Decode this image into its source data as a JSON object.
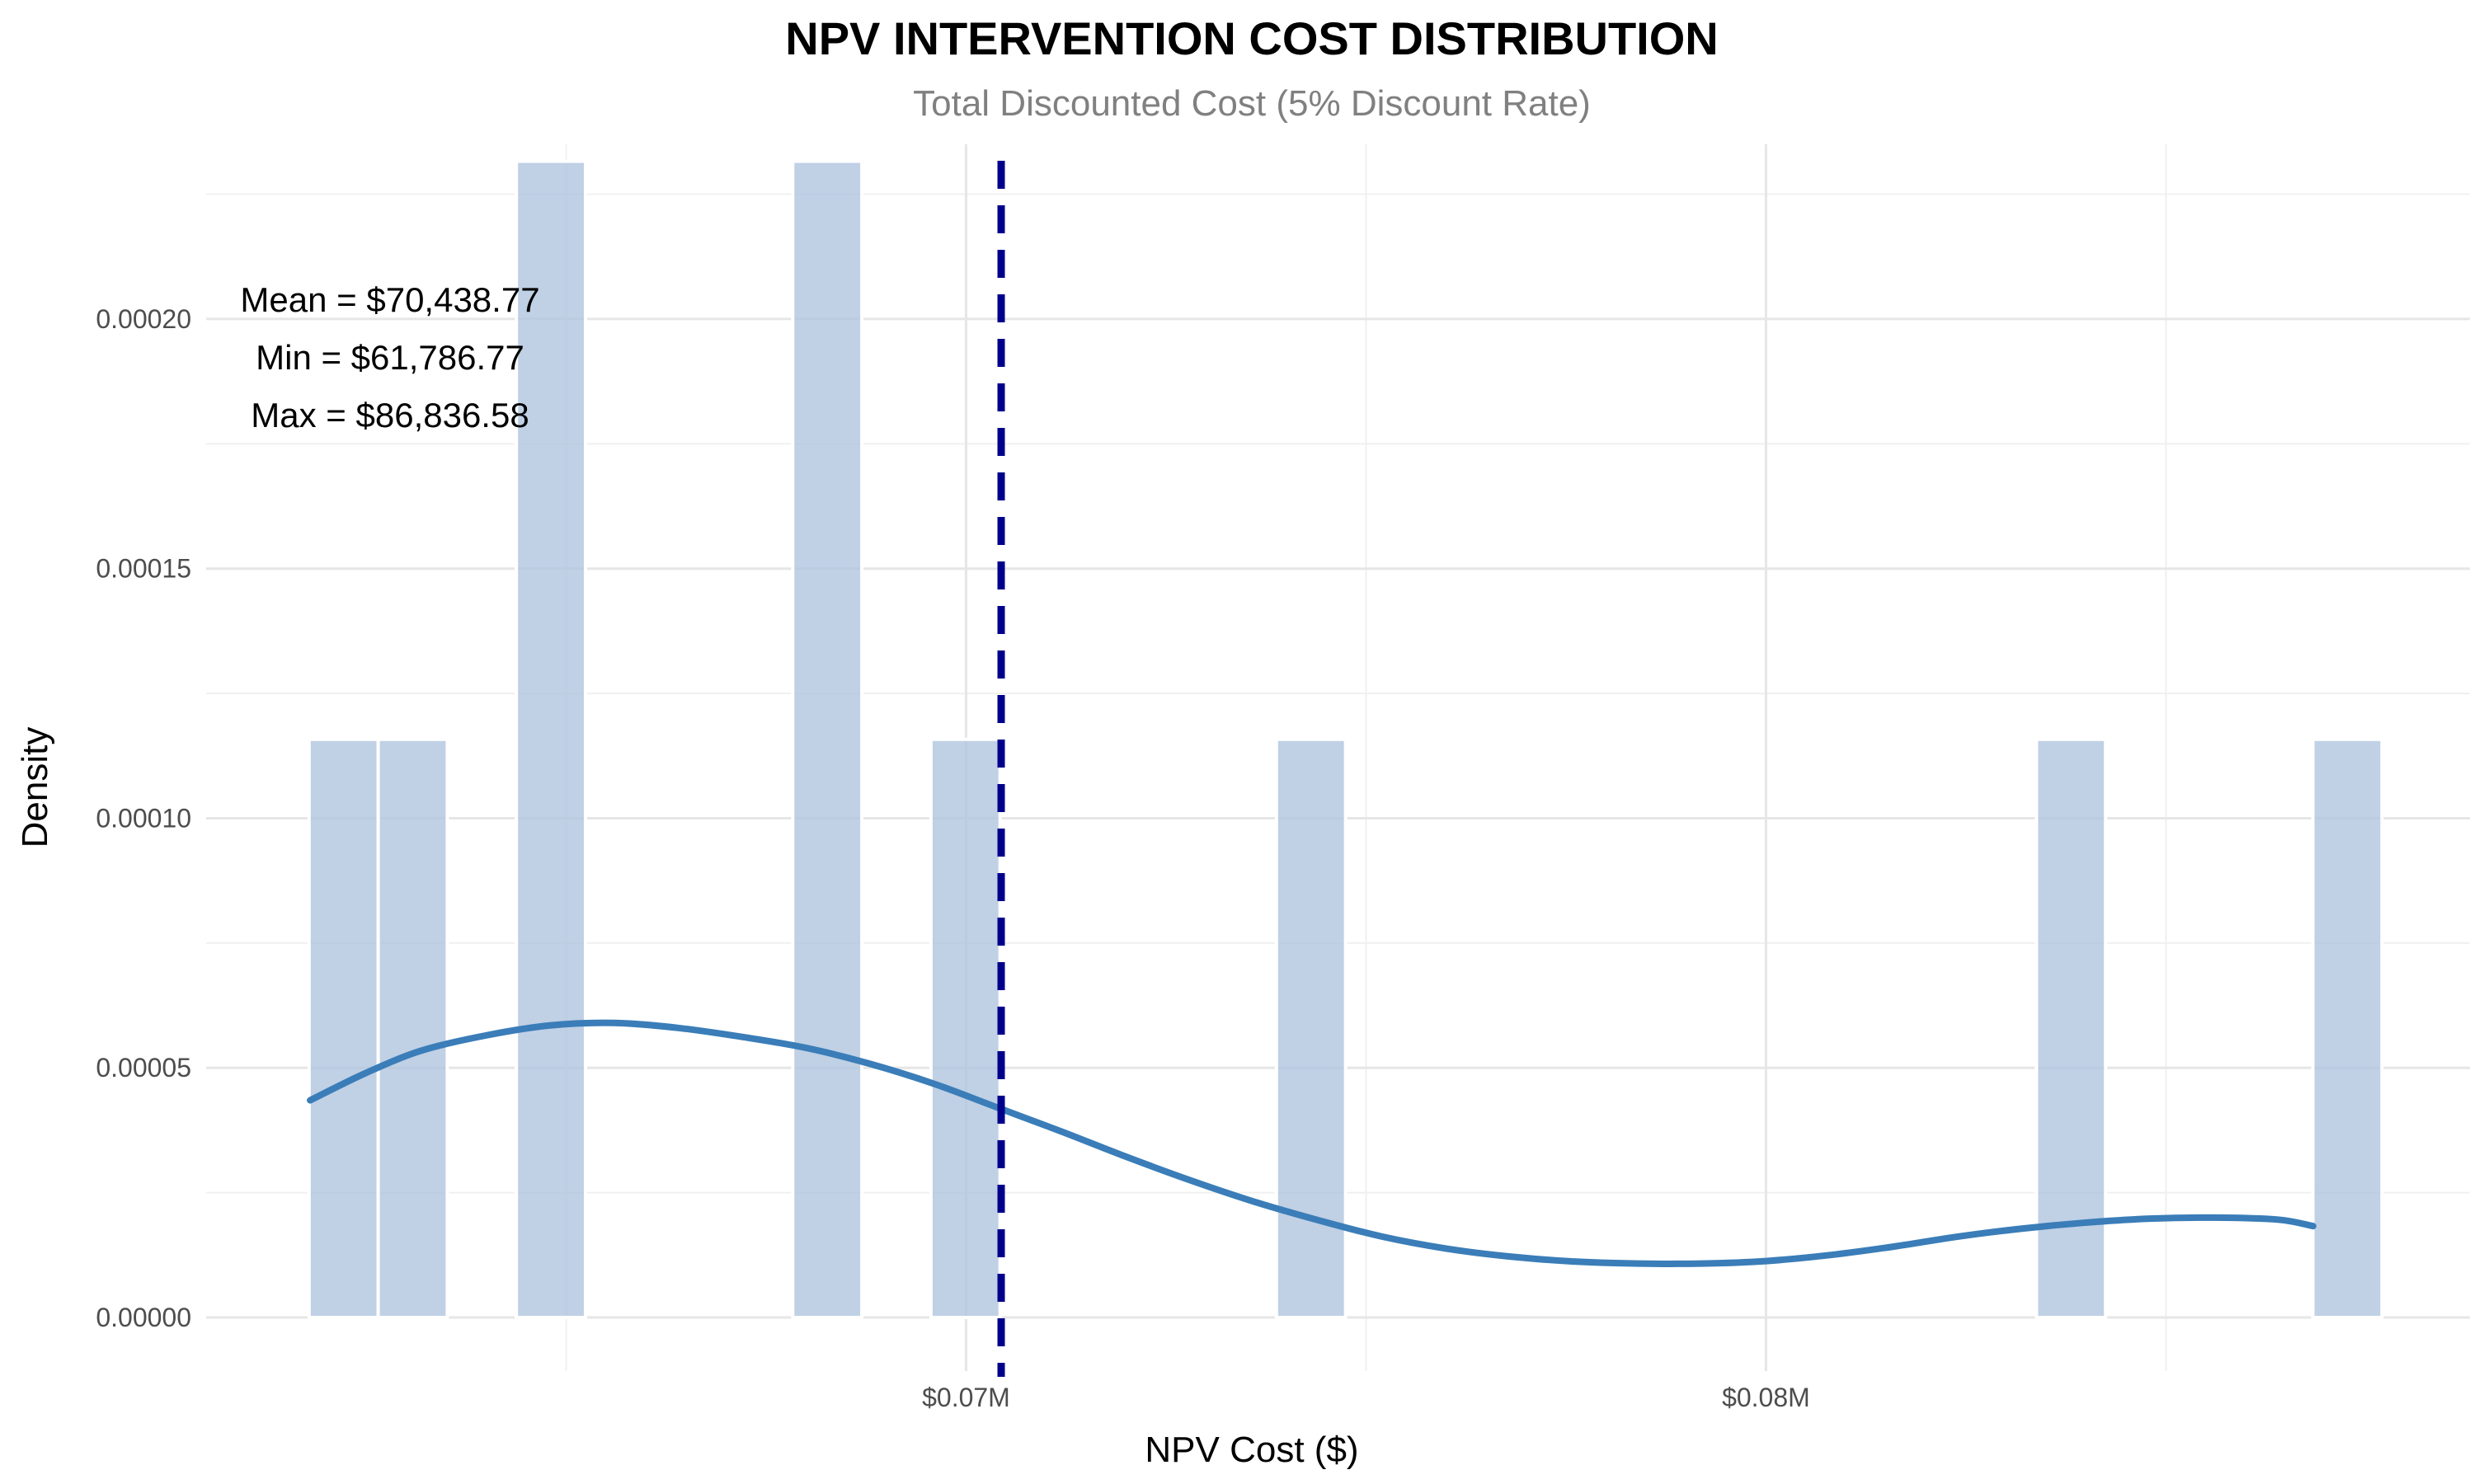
{
  "chart_data": {
    "type": "bar",
    "title": "NPV INTERVENTION COST DISTRIBUTION",
    "subtitle": "Total Discounted Cost (5% Discount Rate)",
    "xlabel": "NPV Cost ($)",
    "ylabel": "Density",
    "xlim": [
      60500,
      88800
    ],
    "ylim": [
      0,
      0.000235
    ],
    "x_ticks": [
      {
        "value": 70000,
        "label": "$0.07M"
      },
      {
        "value": 80000,
        "label": "$0.08M"
      }
    ],
    "x_minor_gridlines": [
      65000,
      75000,
      85000
    ],
    "y_ticks": [
      {
        "value": 0,
        "label": "0.00000"
      },
      {
        "value": 5e-05,
        "label": "0.00005"
      },
      {
        "value": 0.0001,
        "label": "0.00010"
      },
      {
        "value": 0.00015,
        "label": "0.00015"
      },
      {
        "value": 0.0002,
        "label": "0.00020"
      }
    ],
    "y_minor_gridlines": [
      2.5e-05,
      7.5e-05,
      0.000125,
      0.000175,
      0.000225
    ],
    "grid": true,
    "histogram": {
      "bin_width": 863.8,
      "color": "#b0c4de",
      "bins": [
        {
          "center": 62218.6,
          "density": 0.0001158
        },
        {
          "center": 63082.4,
          "density": 0.0001158
        },
        {
          "center": 64810.0,
          "density": 0.0002316
        },
        {
          "center": 68265.2,
          "density": 0.0002316
        },
        {
          "center": 69993.0,
          "density": 0.0001158
        },
        {
          "center": 74312.0,
          "density": 0.0001158
        },
        {
          "center": 83813.8,
          "density": 0.0001158
        },
        {
          "center": 87268.9,
          "density": 0.0001158
        }
      ]
    },
    "density_curve": {
      "color": "#3a7db8",
      "x": [
        61800,
        62500,
        63200,
        64000,
        64800,
        65600,
        66400,
        67200,
        68000,
        68800,
        69600,
        70400,
        71200,
        72000,
        72800,
        73600,
        74400,
        75200,
        76000,
        76800,
        77600,
        78400,
        79200,
        80000,
        80800,
        81600,
        82400,
        83200,
        84000,
        84800,
        85600,
        86400,
        86840
      ],
      "y": [
        4.35e-05,
        4.9e-05,
        5.35e-05,
        5.65e-05,
        5.85e-05,
        5.9e-05,
        5.8e-05,
        5.62e-05,
        5.4e-05,
        5.08e-05,
        4.68e-05,
        4.2e-05,
        3.72e-05,
        3.22e-05,
        2.75e-05,
        2.32e-05,
        1.95e-05,
        1.62e-05,
        1.38e-05,
        1.22e-05,
        1.12e-05,
        1.08e-05,
        1.08e-05,
        1.13e-05,
        1.25e-05,
        1.42e-05,
        1.62e-05,
        1.78e-05,
        1.9e-05,
        1.98e-05,
        2e-05,
        1.96e-05,
        1.83e-05
      ]
    },
    "mean_line": {
      "value": 70438.77,
      "color": "#00008b"
    },
    "annotations": [
      "Mean = $70,438.77",
      "Min = $61,786.77",
      "Max = $86,836.58"
    ]
  }
}
